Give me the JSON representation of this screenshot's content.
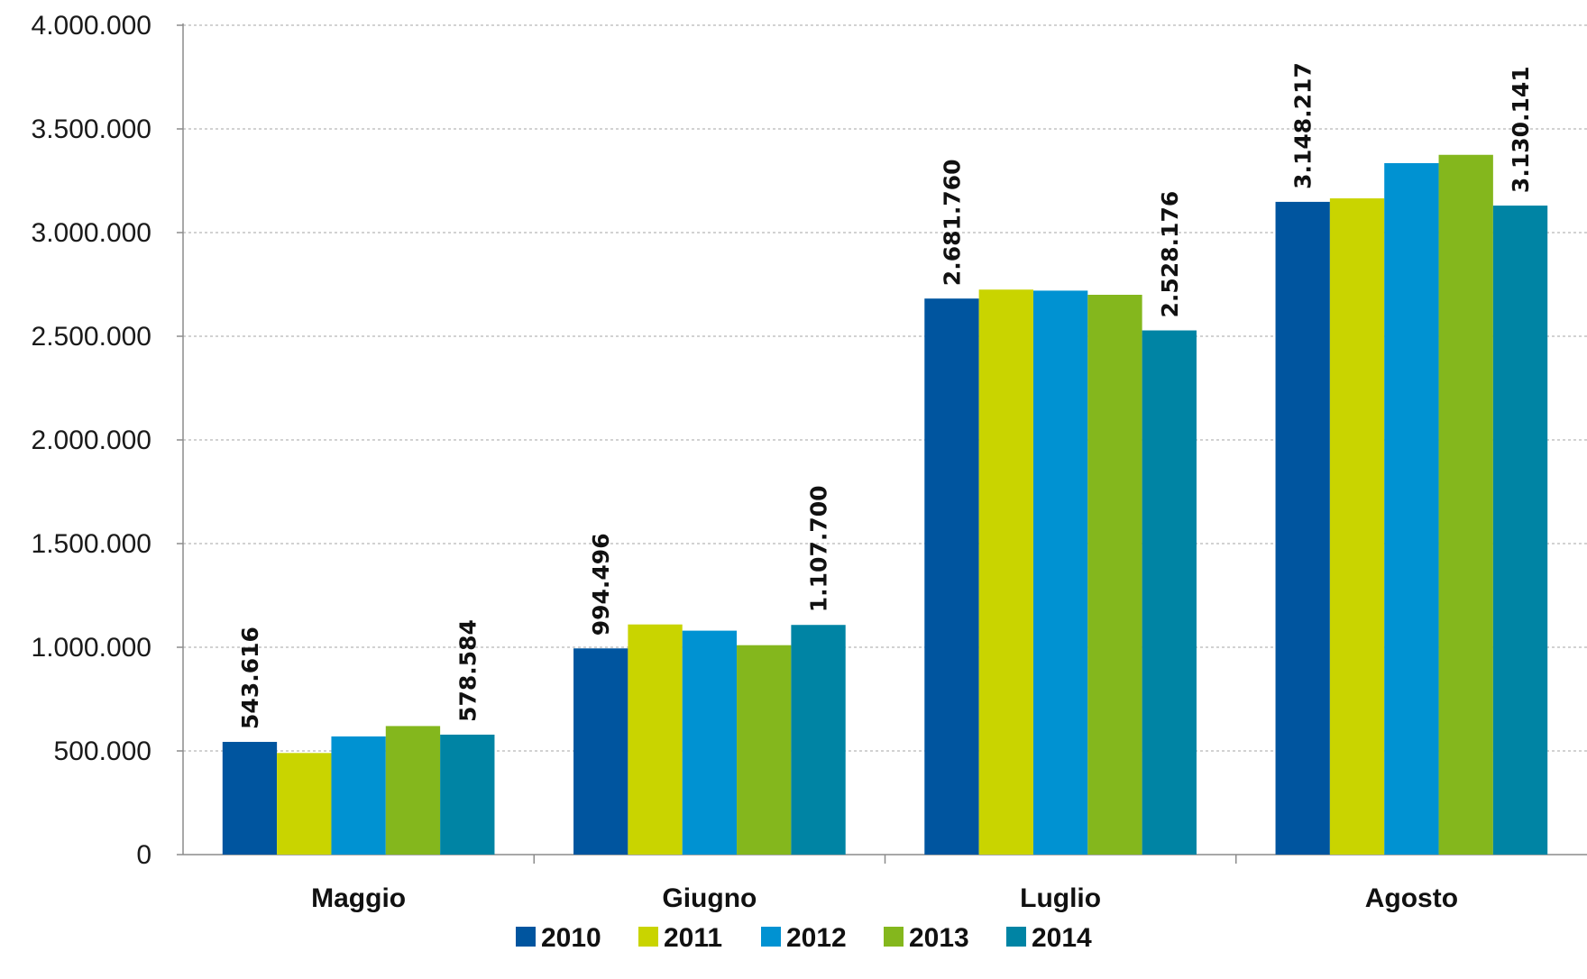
{
  "chart_data": {
    "type": "bar",
    "categories": [
      "Maggio",
      "Giugno",
      "Luglio",
      "Agosto"
    ],
    "series": [
      {
        "name": "2010",
        "color": "#00559f",
        "values": [
          543616,
          994496,
          2681760,
          3148217
        ]
      },
      {
        "name": "2011",
        "color": "#c9d400",
        "values": [
          490000,
          1110000,
          2725000,
          3165000
        ]
      },
      {
        "name": "2012",
        "color": "#0092d2",
        "values": [
          570000,
          1080000,
          2720000,
          3335000
        ]
      },
      {
        "name": "2013",
        "color": "#84b71d",
        "values": [
          620000,
          1010000,
          2700000,
          3375000
        ]
      },
      {
        "name": "2014",
        "color": "#0084a4",
        "values": [
          578584,
          1107700,
          2528176,
          3130141
        ]
      }
    ],
    "data_labels": [
      {
        "series": 0,
        "category": 0,
        "text": "543.616"
      },
      {
        "series": 4,
        "category": 0,
        "text": "578.584"
      },
      {
        "series": 0,
        "category": 1,
        "text": "994.496"
      },
      {
        "series": 4,
        "category": 1,
        "text": "1.107.700"
      },
      {
        "series": 0,
        "category": 2,
        "text": "2.681.760"
      },
      {
        "series": 4,
        "category": 2,
        "text": "2.528.176"
      },
      {
        "series": 0,
        "category": 3,
        "text": "3.148.217"
      },
      {
        "series": 4,
        "category": 3,
        "text": "3.130.141"
      }
    ],
    "ylim": [
      0,
      4000000
    ],
    "yticks": [
      0,
      500000,
      1000000,
      1500000,
      2000000,
      2500000,
      3000000,
      3500000,
      4000000
    ],
    "ytick_labels": [
      "0",
      "500.000",
      "1.000.000",
      "1.500.000",
      "2.000.000",
      "2.500.000",
      "3.000.000",
      "3.500.000",
      "4.000.000"
    ],
    "title": "",
    "xlabel": "",
    "ylabel": "",
    "grid": true,
    "legend_position": "bottom"
  }
}
